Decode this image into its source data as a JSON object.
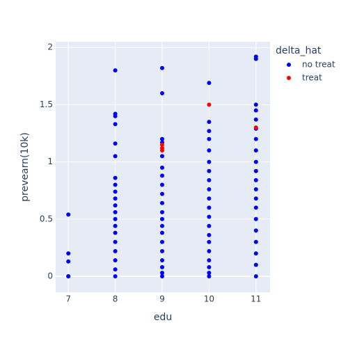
{
  "chart_data": {
    "type": "scatter",
    "xlabel": "edu",
    "ylabel": "prevearn(10k)",
    "legend_title": "delta_hat",
    "xlim": [
      6.73,
      11.3
    ],
    "xticks": [
      7,
      8,
      9,
      10,
      11
    ],
    "ylim": [
      -0.14,
      2.05
    ],
    "yticks": [
      0,
      0.5,
      1,
      1.5,
      2
    ],
    "grid": true,
    "legend": "right",
    "series": [
      {
        "name": "no treat",
        "color": "#0000ff",
        "x": [
          7,
          7,
          7,
          7,
          7,
          8,
          8,
          8,
          8,
          8,
          8,
          8,
          8,
          8,
          8,
          8,
          8,
          8,
          8,
          8,
          8,
          8,
          8,
          8,
          8,
          9,
          9,
          9,
          9,
          9,
          9,
          9,
          9,
          9,
          9,
          9,
          9,
          9,
          9,
          9,
          9,
          9,
          9,
          9,
          9,
          10,
          10,
          10,
          10,
          10,
          10,
          10,
          10,
          10,
          10,
          10,
          10,
          10,
          10,
          10,
          10,
          10,
          10,
          10,
          10,
          11,
          11,
          11,
          11,
          11,
          11,
          11,
          11,
          11,
          11,
          11,
          11,
          11,
          11,
          11,
          11,
          11,
          11,
          11,
          11
        ],
        "y": [
          0.54,
          0.2,
          0.13,
          0,
          0,
          1.8,
          1.42,
          1.4,
          1.33,
          1.16,
          1.05,
          0.86,
          0.8,
          0.74,
          0.68,
          0.62,
          0.56,
          0.5,
          0.44,
          0.38,
          0.3,
          0.22,
          0.14,
          0.06,
          0,
          1.82,
          1.6,
          1.2,
          1.17,
          1.05,
          0.95,
          0.88,
          0.8,
          0.72,
          0.64,
          0.56,
          0.5,
          0.44,
          0.38,
          0.3,
          0.22,
          0.14,
          0.08,
          0.03,
          0,
          1.69,
          1.35,
          1.27,
          1.2,
          1.1,
          1.0,
          0.92,
          0.84,
          0.76,
          0.68,
          0.6,
          0.52,
          0.44,
          0.36,
          0.3,
          0.22,
          0.14,
          0.08,
          0.03,
          0,
          1.92,
          1.9,
          1.5,
          1.45,
          1.37,
          1.29,
          1.2,
          1.1,
          1.0,
          0.92,
          0.84,
          0.76,
          0.68,
          0.6,
          0.5,
          0.4,
          0.3,
          0.2,
          0.1,
          0
        ]
      },
      {
        "name": "treat",
        "color": "#ff0000",
        "x": [
          9,
          9,
          9,
          10,
          11
        ],
        "y": [
          1.15,
          1.12,
          1.1,
          1.5,
          1.3
        ]
      }
    ]
  }
}
